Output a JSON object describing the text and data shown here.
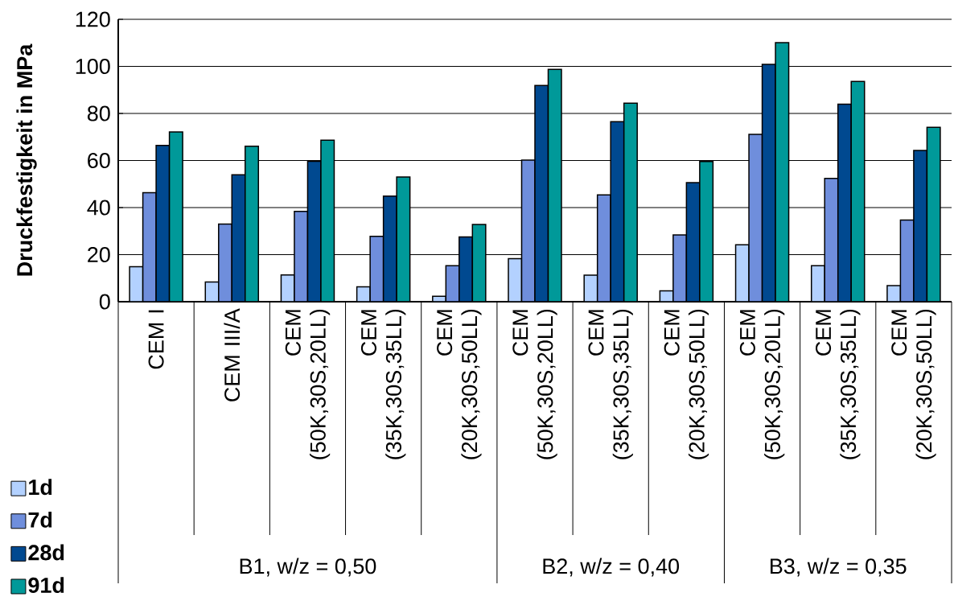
{
  "chart_data": {
    "type": "bar",
    "ylabel": "Druckfestigkeit in MPa",
    "categories": [
      "CEM I",
      "CEM III/A",
      "CEM (50K,30S,20LL)",
      "CEM (35K,30S,35LL)",
      "CEM (20K,30S,50LL)",
      "CEM (50K,30S,20LL)",
      "CEM (35K,30S,35LL)",
      "CEM (20K,30S,50LL)",
      "CEM (50K,30S,20LL)",
      "CEM (35K,30S,35LL)",
      "CEM (20K,30S,50LL)"
    ],
    "series": [
      {
        "name": "1d",
        "color": "#b3d1ff",
        "values": [
          14.9,
          8.4,
          11.4,
          6.3,
          2.3,
          18.3,
          11.3,
          4.6,
          24.2,
          15.3,
          6.8
        ]
      },
      {
        "name": "7d",
        "color": "#6f8edc",
        "values": [
          46.3,
          33.0,
          38.4,
          27.8,
          15.3,
          60.2,
          45.4,
          28.4,
          71.1,
          52.4,
          34.7
        ]
      },
      {
        "name": "28d",
        "color": "#004990",
        "values": [
          66.4,
          53.9,
          59.7,
          44.9,
          27.5,
          91.9,
          76.5,
          50.6,
          100.9,
          83.9,
          64.3
        ]
      },
      {
        "name": "91d",
        "color": "#009999",
        "values": [
          72.1,
          66.1,
          68.6,
          53.0,
          32.8,
          98.7,
          84.4,
          59.6,
          110.1,
          93.6,
          74.1
        ]
      }
    ],
    "annotations": [
      "B1, w/z = 0,50",
      "B2, w/z = 0,40",
      "B3, w/z = 0,35"
    ],
    "ylim": [
      0,
      120
    ],
    "yticks": [
      0,
      20,
      40,
      60,
      80,
      100,
      120
    ],
    "grid": "y",
    "legend": "bottom left"
  }
}
